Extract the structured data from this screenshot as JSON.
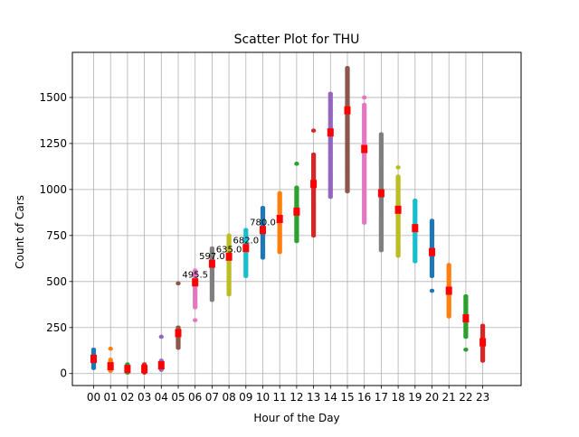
{
  "chart_data": {
    "type": "scatter",
    "title": "Scatter Plot for THU",
    "xlabel": "Hour of the Day",
    "ylabel": "Count of Cars",
    "categories": [
      "00",
      "01",
      "02",
      "03",
      "04",
      "05",
      "06",
      "07",
      "08",
      "09",
      "10",
      "11",
      "12",
      "13",
      "14",
      "15",
      "16",
      "17",
      "18",
      "19",
      "20",
      "21",
      "22",
      "23"
    ],
    "ylim": [
      -65,
      1745
    ],
    "yticks": [
      0,
      250,
      500,
      750,
      1000,
      1250,
      1500
    ],
    "grid": true,
    "colors": [
      "#1f77b4",
      "#ff7f0e",
      "#2ca02c",
      "#d62728",
      "#9467bd",
      "#8c564b",
      "#e377c2",
      "#7f7f7f",
      "#bcbd22",
      "#17becf"
    ],
    "median_color": "#ff0000",
    "series": [
      {
        "category": "00",
        "min": 30,
        "max": 130,
        "outliers": [],
        "median": 80
      },
      {
        "category": "01",
        "min": 15,
        "max": 75,
        "outliers": [
          135
        ],
        "median": 40
      },
      {
        "category": "02",
        "min": 5,
        "max": 50,
        "outliers": [],
        "median": 25
      },
      {
        "category": "03",
        "min": 5,
        "max": 50,
        "outliers": [],
        "median": 25
      },
      {
        "category": "04",
        "min": 20,
        "max": 70,
        "outliers": [
          200
        ],
        "median": 45
      },
      {
        "category": "05",
        "min": 140,
        "max": 250,
        "outliers": [
          490
        ],
        "median": 220
      },
      {
        "category": "06",
        "min": 360,
        "max": 560,
        "outliers": [
          290
        ],
        "median": 495.5
      },
      {
        "category": "07",
        "min": 400,
        "max": 680,
        "outliers": [],
        "median": 597
      },
      {
        "category": "08",
        "min": 430,
        "max": 750,
        "outliers": [],
        "median": 635
      },
      {
        "category": "09",
        "min": 530,
        "max": 780,
        "outliers": [],
        "median": 682
      },
      {
        "category": "10",
        "min": 630,
        "max": 900,
        "outliers": [],
        "median": 780
      },
      {
        "category": "11",
        "min": 660,
        "max": 980,
        "outliers": [],
        "median": 840
      },
      {
        "category": "12",
        "min": 720,
        "max": 1010,
        "outliers": [
          1140
        ],
        "median": 880
      },
      {
        "category": "13",
        "min": 750,
        "max": 1190,
        "outliers": [
          1320
        ],
        "median": 1030
      },
      {
        "category": "14",
        "min": 960,
        "max": 1520,
        "outliers": [],
        "median": 1310
      },
      {
        "category": "15",
        "min": 990,
        "max": 1660,
        "outliers": [],
        "median": 1430
      },
      {
        "category": "16",
        "min": 820,
        "max": 1460,
        "outliers": [
          1500
        ],
        "median": 1220
      },
      {
        "category": "17",
        "min": 670,
        "max": 1300,
        "outliers": [],
        "median": 980
      },
      {
        "category": "18",
        "min": 640,
        "max": 1070,
        "outliers": [
          1120
        ],
        "median": 890
      },
      {
        "category": "19",
        "min": 610,
        "max": 940,
        "outliers": [],
        "median": 790
      },
      {
        "category": "20",
        "min": 530,
        "max": 830,
        "outliers": [
          450
        ],
        "median": 660
      },
      {
        "category": "21",
        "min": 310,
        "max": 590,
        "outliers": [],
        "median": 450
      },
      {
        "category": "22",
        "min": 200,
        "max": 420,
        "outliers": [
          130
        ],
        "median": 300
      },
      {
        "category": "23",
        "min": 70,
        "max": 260,
        "outliers": [],
        "median": 170
      }
    ],
    "annotations": [
      {
        "category": "06",
        "value": 495.5,
        "text": "495.5"
      },
      {
        "category": "07",
        "value": 597,
        "text": "597.0"
      },
      {
        "category": "08",
        "value": 635,
        "text": "635.0"
      },
      {
        "category": "09",
        "value": 682,
        "text": "682.0"
      },
      {
        "category": "10",
        "value": 780,
        "text": "780.0"
      }
    ]
  }
}
